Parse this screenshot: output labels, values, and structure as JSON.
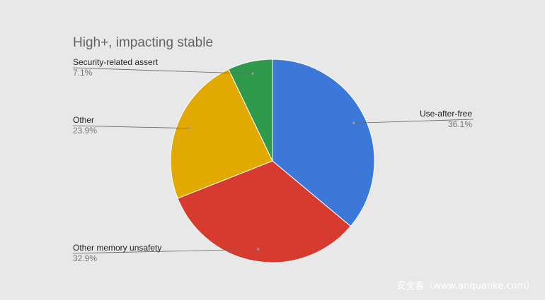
{
  "chart_data": {
    "type": "pie",
    "title": "High+, impacting stable",
    "slices": [
      {
        "label": "Use-after-free",
        "value": 36.1,
        "pct_label": "36.1%",
        "color": "#3c78d8"
      },
      {
        "label": "Other memory unsafety",
        "value": 32.9,
        "pct_label": "32.9%",
        "color": "#d73b30"
      },
      {
        "label": "Other",
        "value": 23.9,
        "pct_label": "23.9%",
        "color": "#e2aa00"
      },
      {
        "label": "Security-related assert",
        "value": 7.1,
        "pct_label": "7.1%",
        "color": "#2f9a4c"
      }
    ],
    "legend": "none"
  },
  "watermark": "安全客（www.anquanke.com）"
}
